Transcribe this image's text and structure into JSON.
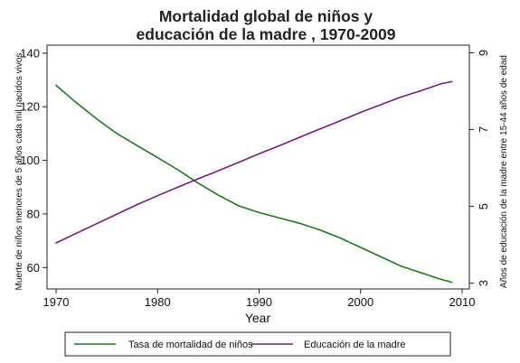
{
  "chart_data": {
    "type": "line",
    "title_lines": [
      "Mortalidad global de niños y",
      "educación de la madre , 1970-2009"
    ],
    "xlabel": "Year",
    "ylabel_left": "Muerte de niños menores de 5 años cada mil nacidos vivos",
    "ylabel_right": "Años de educación de la madre entre 15-44 años de edad",
    "xlim": [
      1970,
      2010
    ],
    "x_ticks": [
      "1970",
      "1980",
      "1990",
      "2000",
      "2010"
    ],
    "ylim_left": [
      52,
      143
    ],
    "y_ticks_left": [
      "60",
      "80",
      "100",
      "120",
      "140"
    ],
    "ylim_right": [
      2.85,
      9.2
    ],
    "y_ticks_right": [
      "3",
      "5",
      "7",
      "9"
    ],
    "grid": false,
    "legend_position": "bottom",
    "series": [
      {
        "name": "Tasa de mortalidad de niños",
        "axis": "left",
        "color": "#1a7a1a",
        "x": [
          1970,
          1972,
          1974,
          1976,
          1978,
          1980,
          1982,
          1984,
          1986,
          1988,
          1990,
          1992,
          1994,
          1996,
          1998,
          2000,
          2002,
          2004,
          2006,
          2008,
          2009
        ],
        "values": [
          128,
          121.5,
          115.5,
          110,
          105.5,
          101,
          96.5,
          91.5,
          87,
          83,
          80.5,
          78.5,
          76.5,
          74,
          71,
          67.5,
          64,
          60.5,
          58,
          55.5,
          54.5
        ]
      },
      {
        "name": "Educación de la madre",
        "axis": "right",
        "color": "#7a1a7a",
        "x": [
          1970,
          1972,
          1974,
          1976,
          1978,
          1980,
          1982,
          1984,
          1986,
          1988,
          1990,
          1992,
          1994,
          1996,
          1998,
          2000,
          2002,
          2004,
          2006,
          2008,
          2009
        ],
        "values": [
          4.05,
          4.3,
          4.55,
          4.8,
          5.05,
          5.28,
          5.5,
          5.72,
          5.93,
          6.15,
          6.37,
          6.58,
          6.8,
          7.02,
          7.23,
          7.45,
          7.65,
          7.85,
          8.02,
          8.2,
          8.25
        ]
      }
    ]
  }
}
